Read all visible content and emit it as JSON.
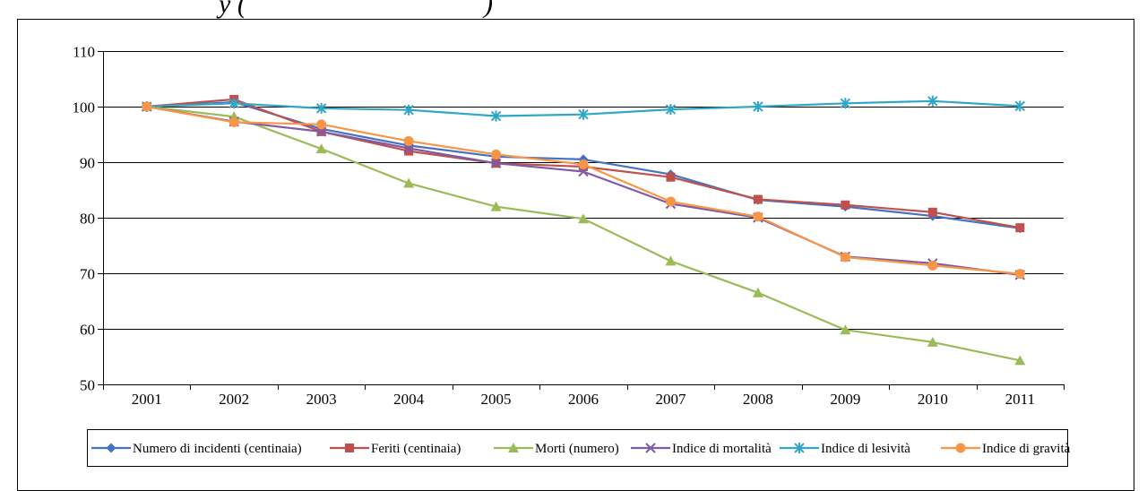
{
  "page": {
    "heading_fragment": "y (",
    "heading_fragment_end": ")"
  },
  "chart_data": {
    "type": "line",
    "title": "",
    "xlabel": "",
    "ylabel": "",
    "categories": [
      "2001",
      "2002",
      "2003",
      "2004",
      "2005",
      "2006",
      "2007",
      "2008",
      "2009",
      "2010",
      "2011"
    ],
    "ylim": [
      50,
      110
    ],
    "yticks": [
      50,
      60,
      70,
      80,
      90,
      100,
      110
    ],
    "grid": true,
    "legend_position": "bottom",
    "series": [
      {
        "name": "Numero di incidenti (centinaia)",
        "color": "#4472C4",
        "marker": "diamond",
        "values": [
          100,
          100.8,
          96.0,
          93.0,
          91.0,
          90.5,
          87.8,
          83.2,
          82.0,
          80.3,
          78.1
        ]
      },
      {
        "name": "Feriti (centinaia)",
        "color": "#C0504D",
        "marker": "square",
        "values": [
          100,
          101.3,
          95.5,
          92.0,
          89.8,
          89.2,
          87.3,
          83.3,
          82.3,
          81.0,
          78.2
        ]
      },
      {
        "name": "Morti (numero)",
        "color": "#9BBB59",
        "marker": "triangle",
        "values": [
          100,
          98.2,
          92.4,
          86.2,
          82.0,
          79.8,
          72.2,
          66.5,
          59.8,
          57.6,
          54.3
        ]
      },
      {
        "name": "Indice di mortalità",
        "color": "#7F5BA6",
        "marker": "x",
        "values": [
          100,
          97.3,
          95.5,
          92.5,
          89.8,
          88.3,
          82.5,
          80.0,
          73.0,
          71.8,
          69.7
        ]
      },
      {
        "name": "Indice di lesività",
        "color": "#31A6C6",
        "marker": "star",
        "values": [
          100,
          100.6,
          99.7,
          99.4,
          98.3,
          98.6,
          99.5,
          100.0,
          100.6,
          101.0,
          100.1
        ]
      },
      {
        "name": "Indice di gravità",
        "color": "#F79646",
        "marker": "circle",
        "values": [
          100,
          97.2,
          96.8,
          93.8,
          91.4,
          89.6,
          82.9,
          80.2,
          72.9,
          71.4,
          69.9
        ]
      }
    ]
  }
}
